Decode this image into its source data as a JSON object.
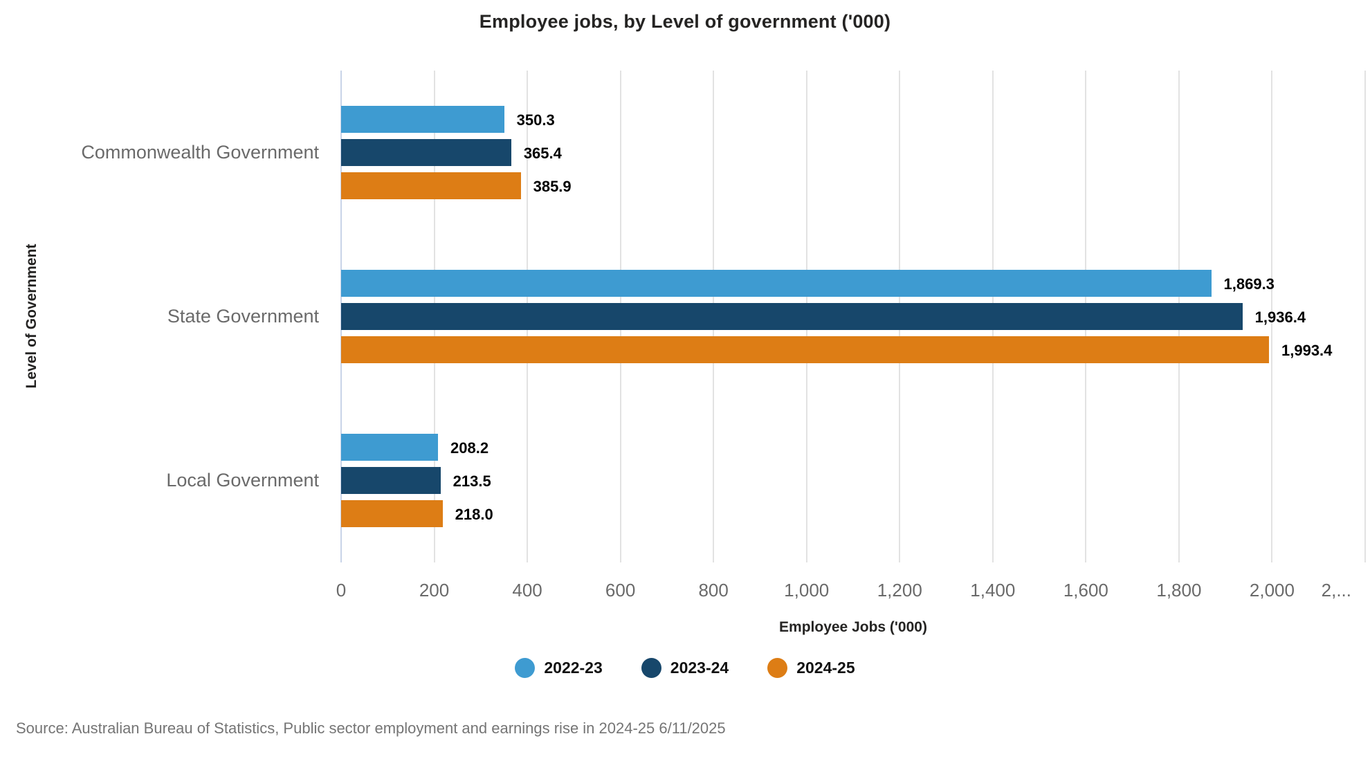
{
  "source": "Source: Australian Bureau of Statistics, Public sector employment and earnings rise in 2024-25 6/11/2025",
  "colors": {
    "series_2022_23": "#3E9BD1",
    "series_2023_24": "#17476B",
    "series_2024_25": "#DD7D15",
    "axis_line": "#C9D4E8",
    "gridline": "#E2E2E2",
    "value_label_text": "#000000",
    "axis_text": "#6A6A6A",
    "title_text": "#252423",
    "source_text": "#757575"
  },
  "chart_data": {
    "type": "bar",
    "orientation": "horizontal",
    "title": "Employee jobs, by Level of government ('000)",
    "xlabel": "Employee Jobs ('000)",
    "ylabel": "Level of Government",
    "categories": [
      "Commonwealth Government",
      "State Government",
      "Local Government"
    ],
    "series": [
      {
        "name": "2022-23",
        "color": "#3E9BD1",
        "values": [
          350.3,
          1869.3,
          208.2
        ],
        "labels": [
          "350.3",
          "1,869.3",
          "208.2"
        ]
      },
      {
        "name": "2023-24",
        "color": "#17476B",
        "values": [
          365.4,
          1936.4,
          213.5
        ],
        "labels": [
          "365.4",
          "1,936.4",
          "213.5"
        ]
      },
      {
        "name": "2024-25",
        "color": "#DD7D15",
        "values": [
          385.9,
          1993.4,
          218.0
        ],
        "labels": [
          "385.9",
          "1,993.4",
          "218.0"
        ]
      }
    ],
    "xlim": [
      0,
      2200
    ],
    "x_tick_labels": [
      "0",
      "200",
      "400",
      "600",
      "800",
      "1,000",
      "1,200",
      "1,400",
      "1,600",
      "1,800",
      "2,000",
      "2,..."
    ],
    "grid": "vertical",
    "legend_position": "bottom",
    "value_labels_shown": true
  }
}
